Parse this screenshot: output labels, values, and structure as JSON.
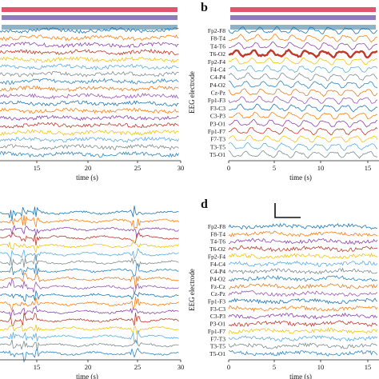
{
  "figure": {
    "panels": [
      {
        "id": "a",
        "letter": "",
        "xlabel": "time (s)",
        "ylabel": "",
        "xticks": [
          "15",
          "20",
          "25",
          "30"
        ],
        "xlim": [
          10,
          30
        ],
        "channel_labels": [],
        "bars": [
          "#e2546d",
          "#8e7cc3",
          "#8fb3c6"
        ],
        "scale_bar": false
      },
      {
        "id": "b",
        "letter": "b",
        "xlabel": "time (s)",
        "ylabel": "EEG electrode",
        "xticks": [
          "0",
          "5",
          "10",
          "15"
        ],
        "xlim": [
          0,
          17
        ],
        "channel_labels": [
          "Fp2-F8",
          "F8-T4",
          "T4-T6",
          "T6-O2",
          "Fp2-F4",
          "F4-C4",
          "C4-P4",
          "P4-O2",
          "Cz-Pz",
          "Fp1-F3",
          "F3-C3",
          "C3-P3",
          "P3-O1",
          "Fp1-F7",
          "F7-T3",
          "T3-T5",
          "T5-O1"
        ],
        "bars": [
          "#e2546d",
          "#8e7cc3",
          "#8fb3c6"
        ],
        "scale_bar": false
      },
      {
        "id": "c",
        "letter": "",
        "xlabel": "time (s)",
        "ylabel": "",
        "xticks": [
          "15",
          "20",
          "25",
          "30"
        ],
        "xlim": [
          10,
          30
        ],
        "channel_labels": [],
        "bars": [],
        "scale_bar": false
      },
      {
        "id": "d",
        "letter": "d",
        "xlabel": "time (s)",
        "ylabel": "EEG electrode",
        "xticks": [
          "0",
          "5",
          "10",
          "15"
        ],
        "xlim": [
          0,
          17
        ],
        "channel_labels": [
          "Fp2-F8",
          "F8-T4",
          "T4-T6",
          "T6-O2",
          "Fp2-F4",
          "F4-C4",
          "C4-P4",
          "P4-O2",
          "Fz-Cz",
          "Cz-Pz",
          "Fp1-F3",
          "F3-C3",
          "C3-P3",
          "P3-O1",
          "Fp1-F7",
          "F7-T3",
          "T3-T5",
          "T5-O1"
        ],
        "bars": [],
        "scale_bar": true
      }
    ],
    "trace_colors": [
      "#1f77b4",
      "#ff7f0e",
      "#8e44ad",
      "#c0392b",
      "#f1c40f",
      "#5dade2",
      "#7f8c8d",
      "#2e86c1",
      "#e67e22",
      "#9b59b6"
    ]
  },
  "chart_data": [
    {
      "panel": "a",
      "type": "line",
      "title": "",
      "xlabel": "time (s)",
      "ylabel": "",
      "xlim": [
        10,
        30
      ],
      "grid": false,
      "legend": "none",
      "n_traces": 18
    },
    {
      "panel": "b",
      "type": "line",
      "title": "",
      "xlabel": "time (s)",
      "ylabel": "EEG electrode",
      "xlim": [
        0,
        17
      ],
      "grid": false,
      "legend": "none",
      "categories": [
        "Fp2-F8",
        "F8-T4",
        "T4-T6",
        "T6-O2",
        "Fp2-F4",
        "F4-C4",
        "C4-P4",
        "P4-O2",
        "Cz-Pz",
        "Fp1-F3",
        "F3-C3",
        "C3-P3",
        "P3-O1",
        "Fp1-F7",
        "F7-T3",
        "T3-T5",
        "T5-O1"
      ]
    },
    {
      "panel": "c",
      "type": "line",
      "title": "",
      "xlabel": "time (s)",
      "ylabel": "",
      "xlim": [
        10,
        30
      ],
      "grid": false,
      "legend": "none",
      "n_traces": 18
    },
    {
      "panel": "d",
      "type": "line",
      "title": "",
      "xlabel": "time (s)",
      "ylabel": "EEG electrode",
      "xlim": [
        0,
        17
      ],
      "grid": false,
      "legend": "none",
      "categories": [
        "Fp2-F8",
        "F8-T4",
        "T4-T6",
        "T6-O2",
        "Fp2-F4",
        "F4-C4",
        "C4-P4",
        "P4-O2",
        "Fz-Cz",
        "Cz-Pz",
        "Fp1-F3",
        "F3-C3",
        "C3-P3",
        "P3-O1",
        "Fp1-F7",
        "F7-T3",
        "T3-T5",
        "T5-O1"
      ]
    }
  ]
}
